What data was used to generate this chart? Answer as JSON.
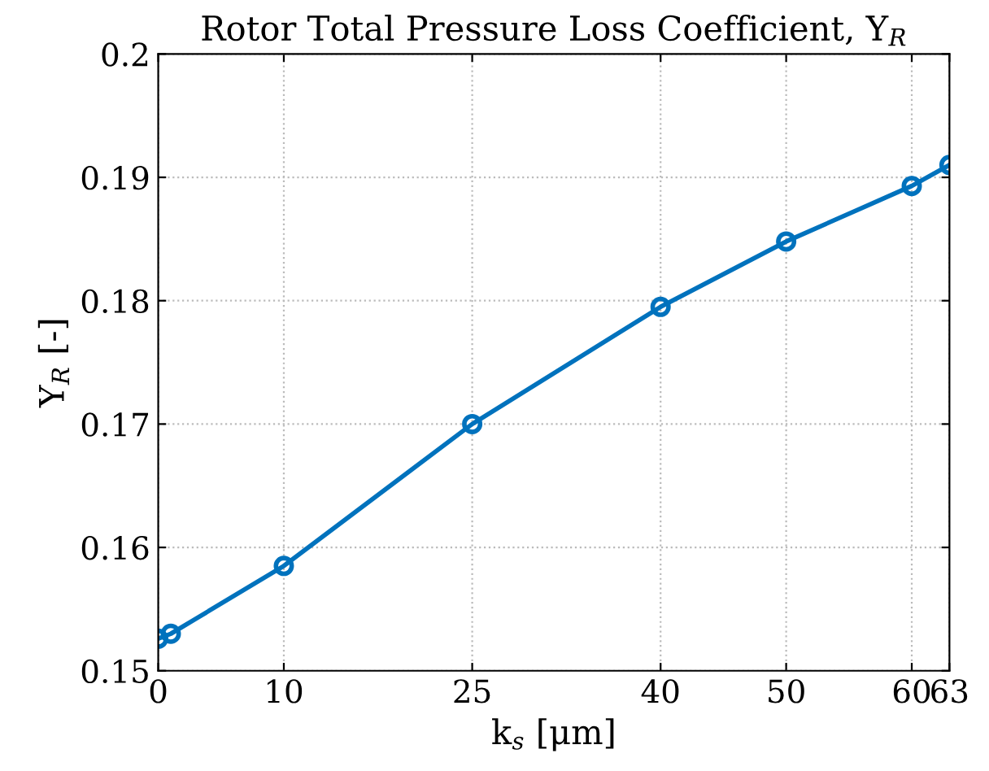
{
  "chart_data": {
    "type": "line",
    "title": "Rotor Total Pressure Loss Coefficient, Y$_{R}$",
    "xlabel": "k$_{s}$ [μm]",
    "ylabel": "Y$_{R}$ [-]",
    "x": [
      0,
      1,
      10,
      25,
      40,
      50,
      60,
      63
    ],
    "series": [
      {
        "color": "#0072bd",
        "values": [
          0.1526,
          0.153,
          0.1585,
          0.17,
          0.1795,
          0.1848,
          0.1893,
          0.191
        ]
      }
    ],
    "xlim": [
      0,
      63
    ],
    "ylim": [
      0.15,
      0.2
    ],
    "xticks": [
      0,
      10,
      25,
      40,
      50,
      60,
      63
    ],
    "yticks": [
      0.15,
      0.16,
      0.17,
      0.18,
      0.19,
      0.2
    ],
    "grid": true,
    "marker": "circle",
    "line_style": "solid"
  }
}
